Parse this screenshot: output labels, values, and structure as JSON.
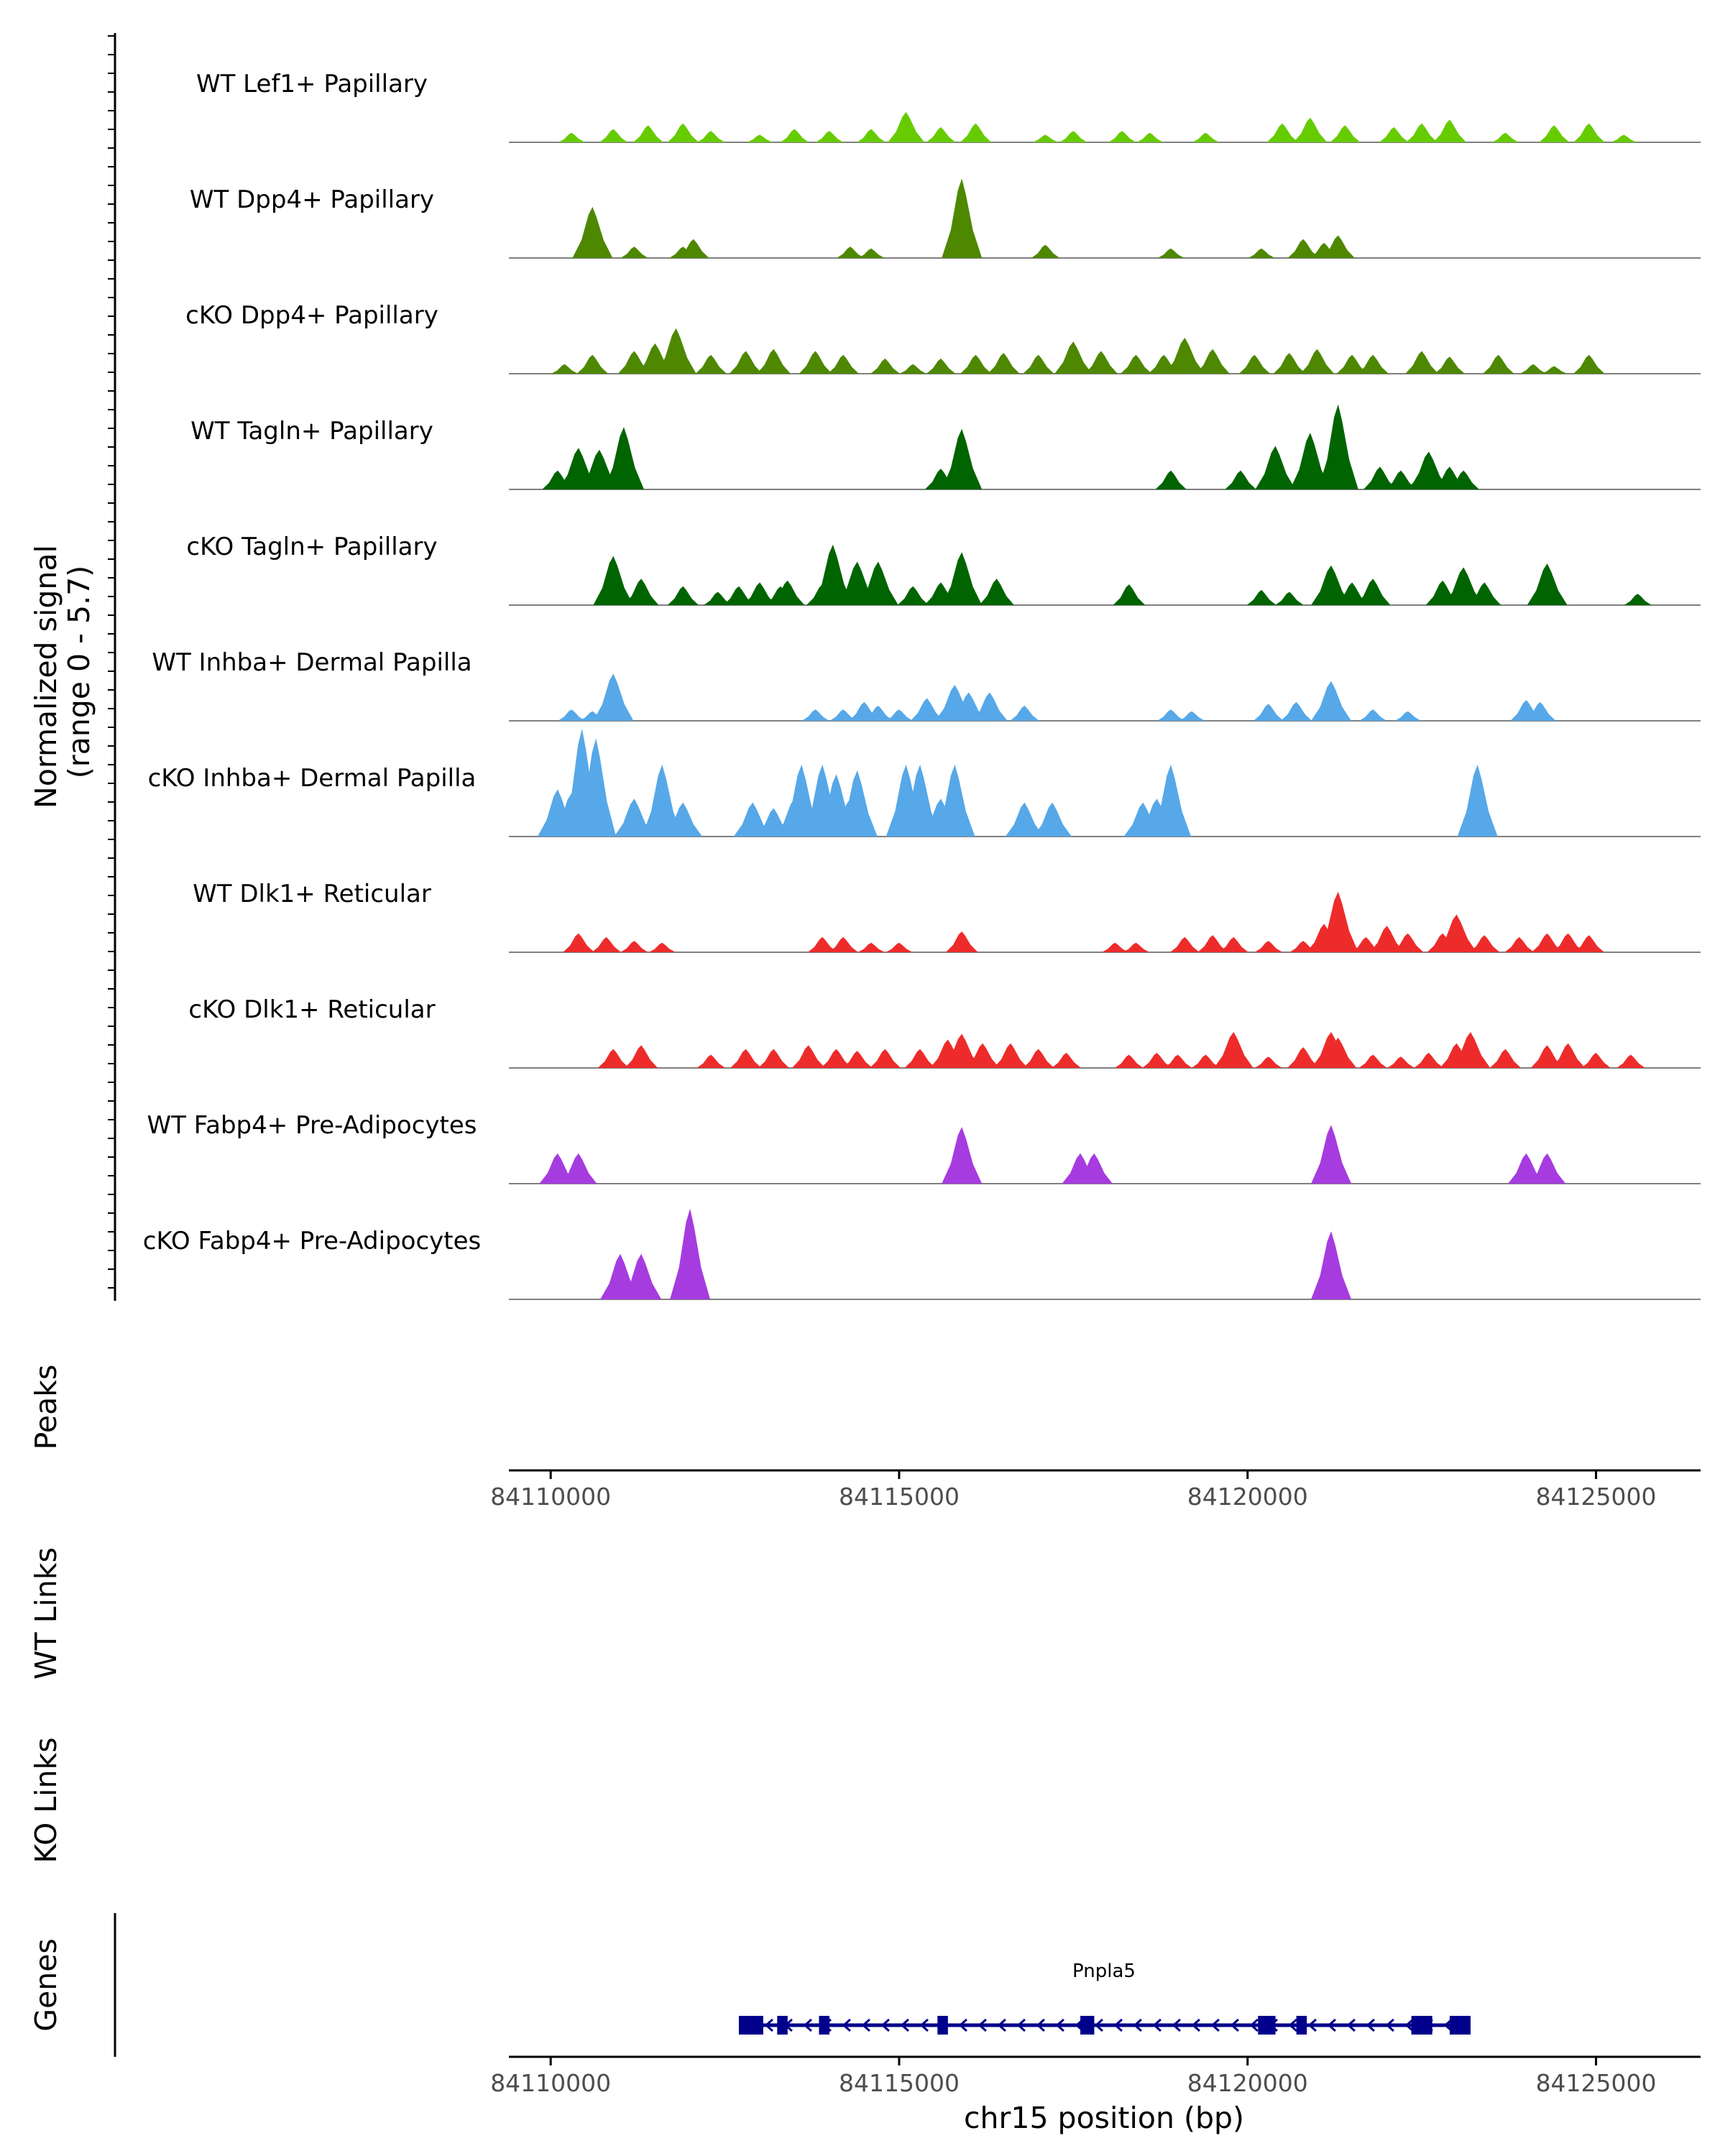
{
  "chart_data": {
    "type": "area",
    "title": "",
    "signal_axis_label_line1": "Normalized signal",
    "signal_axis_label_line2": "(range 0 - 5.7)",
    "signal_range": [
      0,
      5.7
    ],
    "xlabel": "chr15 position (bp)",
    "xlim": [
      84109400,
      84126500
    ],
    "x_ticks": [
      84110000,
      84115000,
      84120000,
      84125000
    ],
    "x_tick_labels": [
      "84110000",
      "84115000",
      "84120000",
      "84125000"
    ],
    "tracks": [
      {
        "name": "WT Lef1+ Papillary",
        "color": "#66CC00",
        "peaks": [
          [
            84110300,
            0.5
          ],
          [
            84110900,
            0.7
          ],
          [
            84111400,
            0.9
          ],
          [
            84111900,
            1.0
          ],
          [
            84112300,
            0.6
          ],
          [
            84113000,
            0.4
          ],
          [
            84113500,
            0.7
          ],
          [
            84114000,
            0.6
          ],
          [
            84114600,
            0.7
          ],
          [
            84115100,
            1.6
          ],
          [
            84115600,
            0.8
          ],
          [
            84116100,
            1.0
          ],
          [
            84117100,
            0.4
          ],
          [
            84117500,
            0.6
          ],
          [
            84118200,
            0.6
          ],
          [
            84118600,
            0.5
          ],
          [
            84119400,
            0.5
          ],
          [
            84120500,
            1.0
          ],
          [
            84120900,
            1.3
          ],
          [
            84121400,
            0.9
          ],
          [
            84122100,
            0.8
          ],
          [
            84122500,
            1.0
          ],
          [
            84122900,
            1.2
          ],
          [
            84123700,
            0.5
          ],
          [
            84124400,
            0.9
          ],
          [
            84124900,
            1.0
          ],
          [
            84125400,
            0.4
          ]
        ]
      },
      {
        "name": "WT Dpp4+ Papillary",
        "color": "#4D8800",
        "peaks": [
          [
            84110600,
            2.7
          ],
          [
            84111200,
            0.6
          ],
          [
            84111900,
            0.6
          ],
          [
            84112050,
            1.0
          ],
          [
            84114300,
            0.6
          ],
          [
            84114600,
            0.5
          ],
          [
            84115900,
            4.2
          ],
          [
            84117100,
            0.7
          ],
          [
            84118900,
            0.5
          ],
          [
            84120200,
            0.5
          ],
          [
            84120800,
            1.0
          ],
          [
            84121100,
            0.8
          ],
          [
            84121300,
            1.2
          ]
        ]
      },
      {
        "name": "cKO Dpp4+ Papillary",
        "color": "#4D8800",
        "peaks": [
          [
            84110200,
            0.5
          ],
          [
            84110600,
            1.0
          ],
          [
            84111200,
            1.2
          ],
          [
            84111500,
            1.6
          ],
          [
            84111800,
            2.4
          ],
          [
            84112300,
            1.0
          ],
          [
            84112800,
            1.2
          ],
          [
            84113200,
            1.3
          ],
          [
            84113800,
            1.2
          ],
          [
            84114200,
            1.0
          ],
          [
            84114800,
            0.8
          ],
          [
            84115200,
            0.5
          ],
          [
            84115600,
            0.8
          ],
          [
            84116100,
            1.0
          ],
          [
            84116500,
            1.1
          ],
          [
            84117000,
            1.0
          ],
          [
            84117500,
            1.7
          ],
          [
            84117900,
            1.2
          ],
          [
            84118400,
            1.0
          ],
          [
            84118800,
            1.0
          ],
          [
            84119100,
            1.9
          ],
          [
            84119500,
            1.3
          ],
          [
            84120100,
            1.0
          ],
          [
            84120600,
            1.1
          ],
          [
            84121000,
            1.3
          ],
          [
            84121500,
            1.0
          ],
          [
            84121800,
            1.0
          ],
          [
            84122500,
            1.2
          ],
          [
            84122900,
            0.9
          ],
          [
            84123600,
            1.0
          ],
          [
            84124100,
            0.5
          ],
          [
            84124400,
            0.4
          ],
          [
            84124900,
            1.0
          ]
        ]
      },
      {
        "name": "WT Tagln+ Papillary",
        "color": "#006400",
        "peaks": [
          [
            84110100,
            1.0
          ],
          [
            84110400,
            2.2
          ],
          [
            84110700,
            2.1
          ],
          [
            84110950,
            1.2
          ],
          [
            84111050,
            3.3
          ],
          [
            84115600,
            1.1
          ],
          [
            84115900,
            3.2
          ],
          [
            84118900,
            1.0
          ],
          [
            84119900,
            1.0
          ],
          [
            84120400,
            2.3
          ],
          [
            84120900,
            3.0
          ],
          [
            84121300,
            4.5
          ],
          [
            84121900,
            1.2
          ],
          [
            84122200,
            1.0
          ],
          [
            84122500,
            1.0
          ],
          [
            84122600,
            2.0
          ],
          [
            84122900,
            1.2
          ],
          [
            84123100,
            1.0
          ]
        ]
      },
      {
        "name": "cKO Tagln+ Papillary",
        "color": "#006400",
        "peaks": [
          [
            84110900,
            2.6
          ],
          [
            84111300,
            1.4
          ],
          [
            84111900,
            1.0
          ],
          [
            84112400,
            0.7
          ],
          [
            84112700,
            1.0
          ],
          [
            84113000,
            1.2
          ],
          [
            84113300,
            1.0
          ],
          [
            84113400,
            1.3
          ],
          [
            84113900,
            1.1
          ],
          [
            84114050,
            3.2
          ],
          [
            84114400,
            2.3
          ],
          [
            84114700,
            2.3
          ],
          [
            84115200,
            1.0
          ],
          [
            84115600,
            1.2
          ],
          [
            84115900,
            2.8
          ],
          [
            84116400,
            1.4
          ],
          [
            84118300,
            1.1
          ],
          [
            84120200,
            0.8
          ],
          [
            84120600,
            0.7
          ],
          [
            84121200,
            2.1
          ],
          [
            84121500,
            1.2
          ],
          [
            84121800,
            1.4
          ],
          [
            84122800,
            1.3
          ],
          [
            84123100,
            2.0
          ],
          [
            84123400,
            1.2
          ],
          [
            84124300,
            2.2
          ],
          [
            84125600,
            0.6
          ]
        ]
      },
      {
        "name": "WT Inhba+ Dermal Papilla",
        "color": "#56A8E8",
        "peaks": [
          [
            84110300,
            0.6
          ],
          [
            84110600,
            0.5
          ],
          [
            84110900,
            2.5
          ],
          [
            84113800,
            0.6
          ],
          [
            84114200,
            0.6
          ],
          [
            84114500,
            1.0
          ],
          [
            84114700,
            0.8
          ],
          [
            84115000,
            0.6
          ],
          [
            84115400,
            1.2
          ],
          [
            84115800,
            1.9
          ],
          [
            84116000,
            1.5
          ],
          [
            84116300,
            1.5
          ],
          [
            84116800,
            0.8
          ],
          [
            84118900,
            0.6
          ],
          [
            84119200,
            0.5
          ],
          [
            84120300,
            0.9
          ],
          [
            84120700,
            1.0
          ],
          [
            84121200,
            2.1
          ],
          [
            84121800,
            0.6
          ],
          [
            84122300,
            0.5
          ],
          [
            84124000,
            1.1
          ],
          [
            84124200,
            1.0
          ]
        ]
      },
      {
        "name": "cKO Inhba+ Dermal Papilla",
        "color": "#56A8E8",
        "peaks": [
          [
            84110100,
            2.5
          ],
          [
            84110300,
            2.3
          ],
          [
            84110450,
            5.7
          ],
          [
            84110600,
            2.0
          ],
          [
            84110650,
            5.2
          ],
          [
            84111200,
            2.0
          ],
          [
            84111500,
            1.5
          ],
          [
            84111600,
            3.8
          ],
          [
            84111900,
            1.8
          ],
          [
            84112900,
            1.8
          ],
          [
            84113200,
            1.5
          ],
          [
            84113500,
            2.0
          ],
          [
            84113600,
            3.8
          ],
          [
            84113900,
            3.8
          ],
          [
            84114100,
            3.3
          ],
          [
            84114300,
            2.0
          ],
          [
            84114400,
            3.5
          ],
          [
            84115100,
            3.8
          ],
          [
            84115300,
            3.8
          ],
          [
            84115600,
            2.0
          ],
          [
            84115800,
            3.8
          ],
          [
            84116800,
            1.8
          ],
          [
            84117200,
            1.8
          ],
          [
            84118500,
            1.8
          ],
          [
            84118700,
            2.0
          ],
          [
            84118900,
            3.8
          ],
          [
            84123300,
            3.8
          ]
        ]
      },
      {
        "name": "WT Dlk1+ Reticular",
        "color": "#EE2B2B",
        "peaks": [
          [
            84110400,
            1.0
          ],
          [
            84110800,
            0.8
          ],
          [
            84111200,
            0.6
          ],
          [
            84111600,
            0.5
          ],
          [
            84113900,
            0.8
          ],
          [
            84114200,
            0.8
          ],
          [
            84114600,
            0.5
          ],
          [
            84115000,
            0.5
          ],
          [
            84115900,
            1.1
          ],
          [
            84118100,
            0.5
          ],
          [
            84118400,
            0.5
          ],
          [
            84119100,
            0.8
          ],
          [
            84119500,
            0.9
          ],
          [
            84119800,
            0.8
          ],
          [
            84120300,
            0.6
          ],
          [
            84120800,
            0.6
          ],
          [
            84121100,
            1.5
          ],
          [
            84121300,
            3.2
          ],
          [
            84121700,
            0.8
          ],
          [
            84122000,
            1.4
          ],
          [
            84122300,
            1.0
          ],
          [
            84122800,
            1.0
          ],
          [
            84123000,
            2.0
          ],
          [
            84123400,
            0.9
          ],
          [
            84123900,
            0.8
          ],
          [
            84124300,
            1.0
          ],
          [
            84124600,
            1.0
          ],
          [
            84124900,
            0.9
          ]
        ]
      },
      {
        "name": "cKO Dlk1+ Reticular",
        "color": "#EE2B2B",
        "peaks": [
          [
            84110900,
            1.0
          ],
          [
            84111300,
            1.2
          ],
          [
            84112300,
            0.7
          ],
          [
            84112800,
            1.0
          ],
          [
            84113200,
            1.0
          ],
          [
            84113700,
            1.2
          ],
          [
            84114100,
            1.0
          ],
          [
            84114400,
            0.9
          ],
          [
            84114800,
            1.0
          ],
          [
            84115300,
            1.0
          ],
          [
            84115700,
            1.5
          ],
          [
            84115900,
            1.8
          ],
          [
            84116200,
            1.3
          ],
          [
            84116600,
            1.3
          ],
          [
            84117000,
            1.0
          ],
          [
            84117400,
            0.8
          ],
          [
            84118300,
            0.7
          ],
          [
            84118700,
            0.8
          ],
          [
            84119000,
            0.7
          ],
          [
            84119400,
            0.7
          ],
          [
            84119800,
            1.9
          ],
          [
            84120300,
            0.6
          ],
          [
            84120800,
            1.1
          ],
          [
            84121200,
            1.9
          ],
          [
            84121300,
            1.6
          ],
          [
            84121800,
            0.7
          ],
          [
            84122200,
            0.6
          ],
          [
            84122600,
            0.8
          ],
          [
            84123000,
            1.3
          ],
          [
            84123200,
            1.9
          ],
          [
            84123700,
            1.0
          ],
          [
            84124300,
            1.2
          ],
          [
            84124600,
            1.3
          ],
          [
            84125000,
            0.8
          ],
          [
            84125500,
            0.7
          ]
        ]
      },
      {
        "name": "WT Fabp4+ Pre-Adipocytes",
        "color": "#A63CE0",
        "peaks": [
          [
            84110100,
            1.6
          ],
          [
            84110400,
            1.6
          ],
          [
            84115900,
            3.0
          ],
          [
            84117600,
            1.6
          ],
          [
            84117800,
            1.6
          ],
          [
            84121200,
            3.1
          ],
          [
            84124000,
            1.6
          ],
          [
            84124300,
            1.6
          ]
        ]
      },
      {
        "name": "cKO Fabp4+ Pre-Adipocytes",
        "color": "#A63CE0",
        "peaks": [
          [
            84111000,
            2.4
          ],
          [
            84111300,
            2.4
          ],
          [
            84112000,
            4.8
          ],
          [
            84121200,
            3.6
          ]
        ]
      }
    ],
    "peaks_track_label": "Peaks",
    "wt_links_label": "WT Links",
    "ko_links_label": "KO Links",
    "genes_track_label": "Genes",
    "gene": {
      "name": "Pnpla5",
      "color": "#00008B",
      "strand": "-",
      "start": 84112700,
      "end": 84123200,
      "exons": [
        [
          84112700,
          84113050
        ],
        [
          84113250,
          84113400
        ],
        [
          84113850,
          84114000
        ],
        [
          84115550,
          84115700
        ],
        [
          84117600,
          84117800
        ],
        [
          84120150,
          84120400
        ],
        [
          84120700,
          84120850
        ],
        [
          84122350,
          84122650
        ],
        [
          84122900,
          84123200
        ]
      ]
    }
  }
}
